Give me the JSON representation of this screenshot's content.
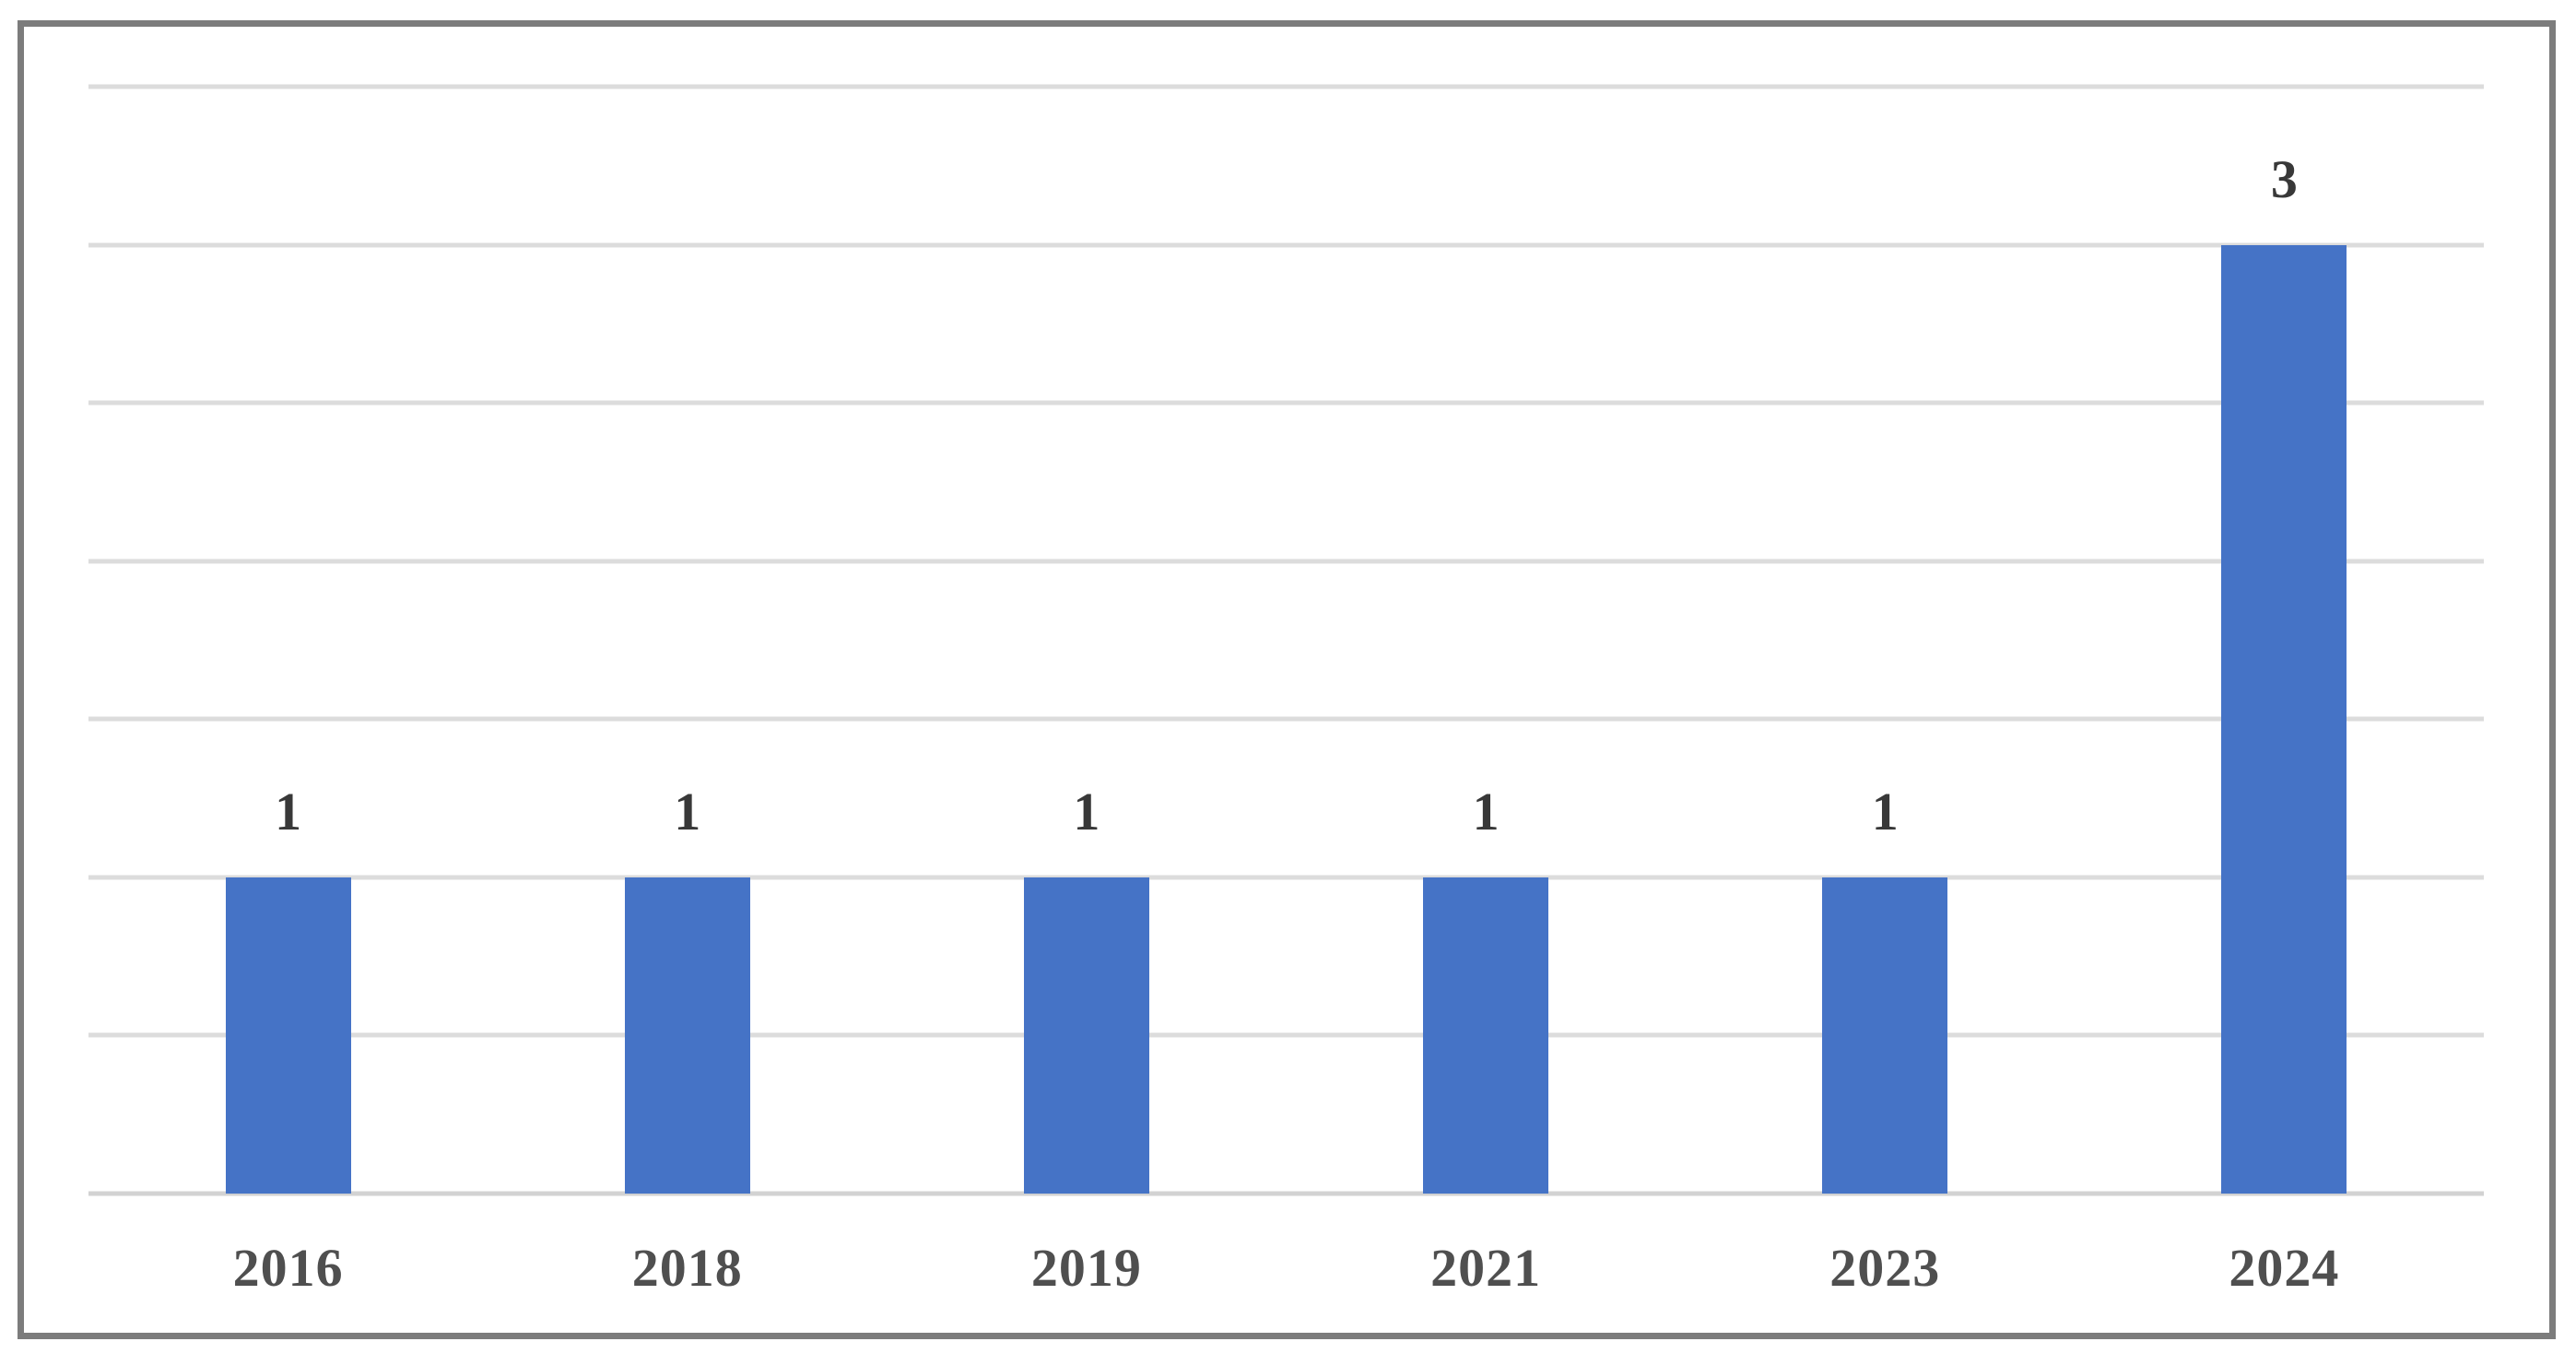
{
  "chart_data": {
    "type": "bar",
    "categories": [
      "2016",
      "2018",
      "2019",
      "2021",
      "2023",
      "2024"
    ],
    "values": [
      1,
      1,
      1,
      1,
      1,
      3
    ],
    "data_labels": [
      "1",
      "1",
      "1",
      "1",
      "1",
      "3"
    ],
    "title": "",
    "xlabel": "",
    "ylabel": "",
    "ylim": [
      0,
      3.5
    ],
    "gridline_interval": 0.5,
    "grid": true,
    "legend": false,
    "y_axis_tick_labels_visible": false,
    "colors": {
      "bar": "#4573C6",
      "gridline": "#DCDCDC",
      "axis_line": "#D2D2D2",
      "frame_border": "#7C7C7C",
      "data_label": "#383838",
      "axis_label": "#4F4F4F",
      "background": "#FFFFFF"
    }
  }
}
